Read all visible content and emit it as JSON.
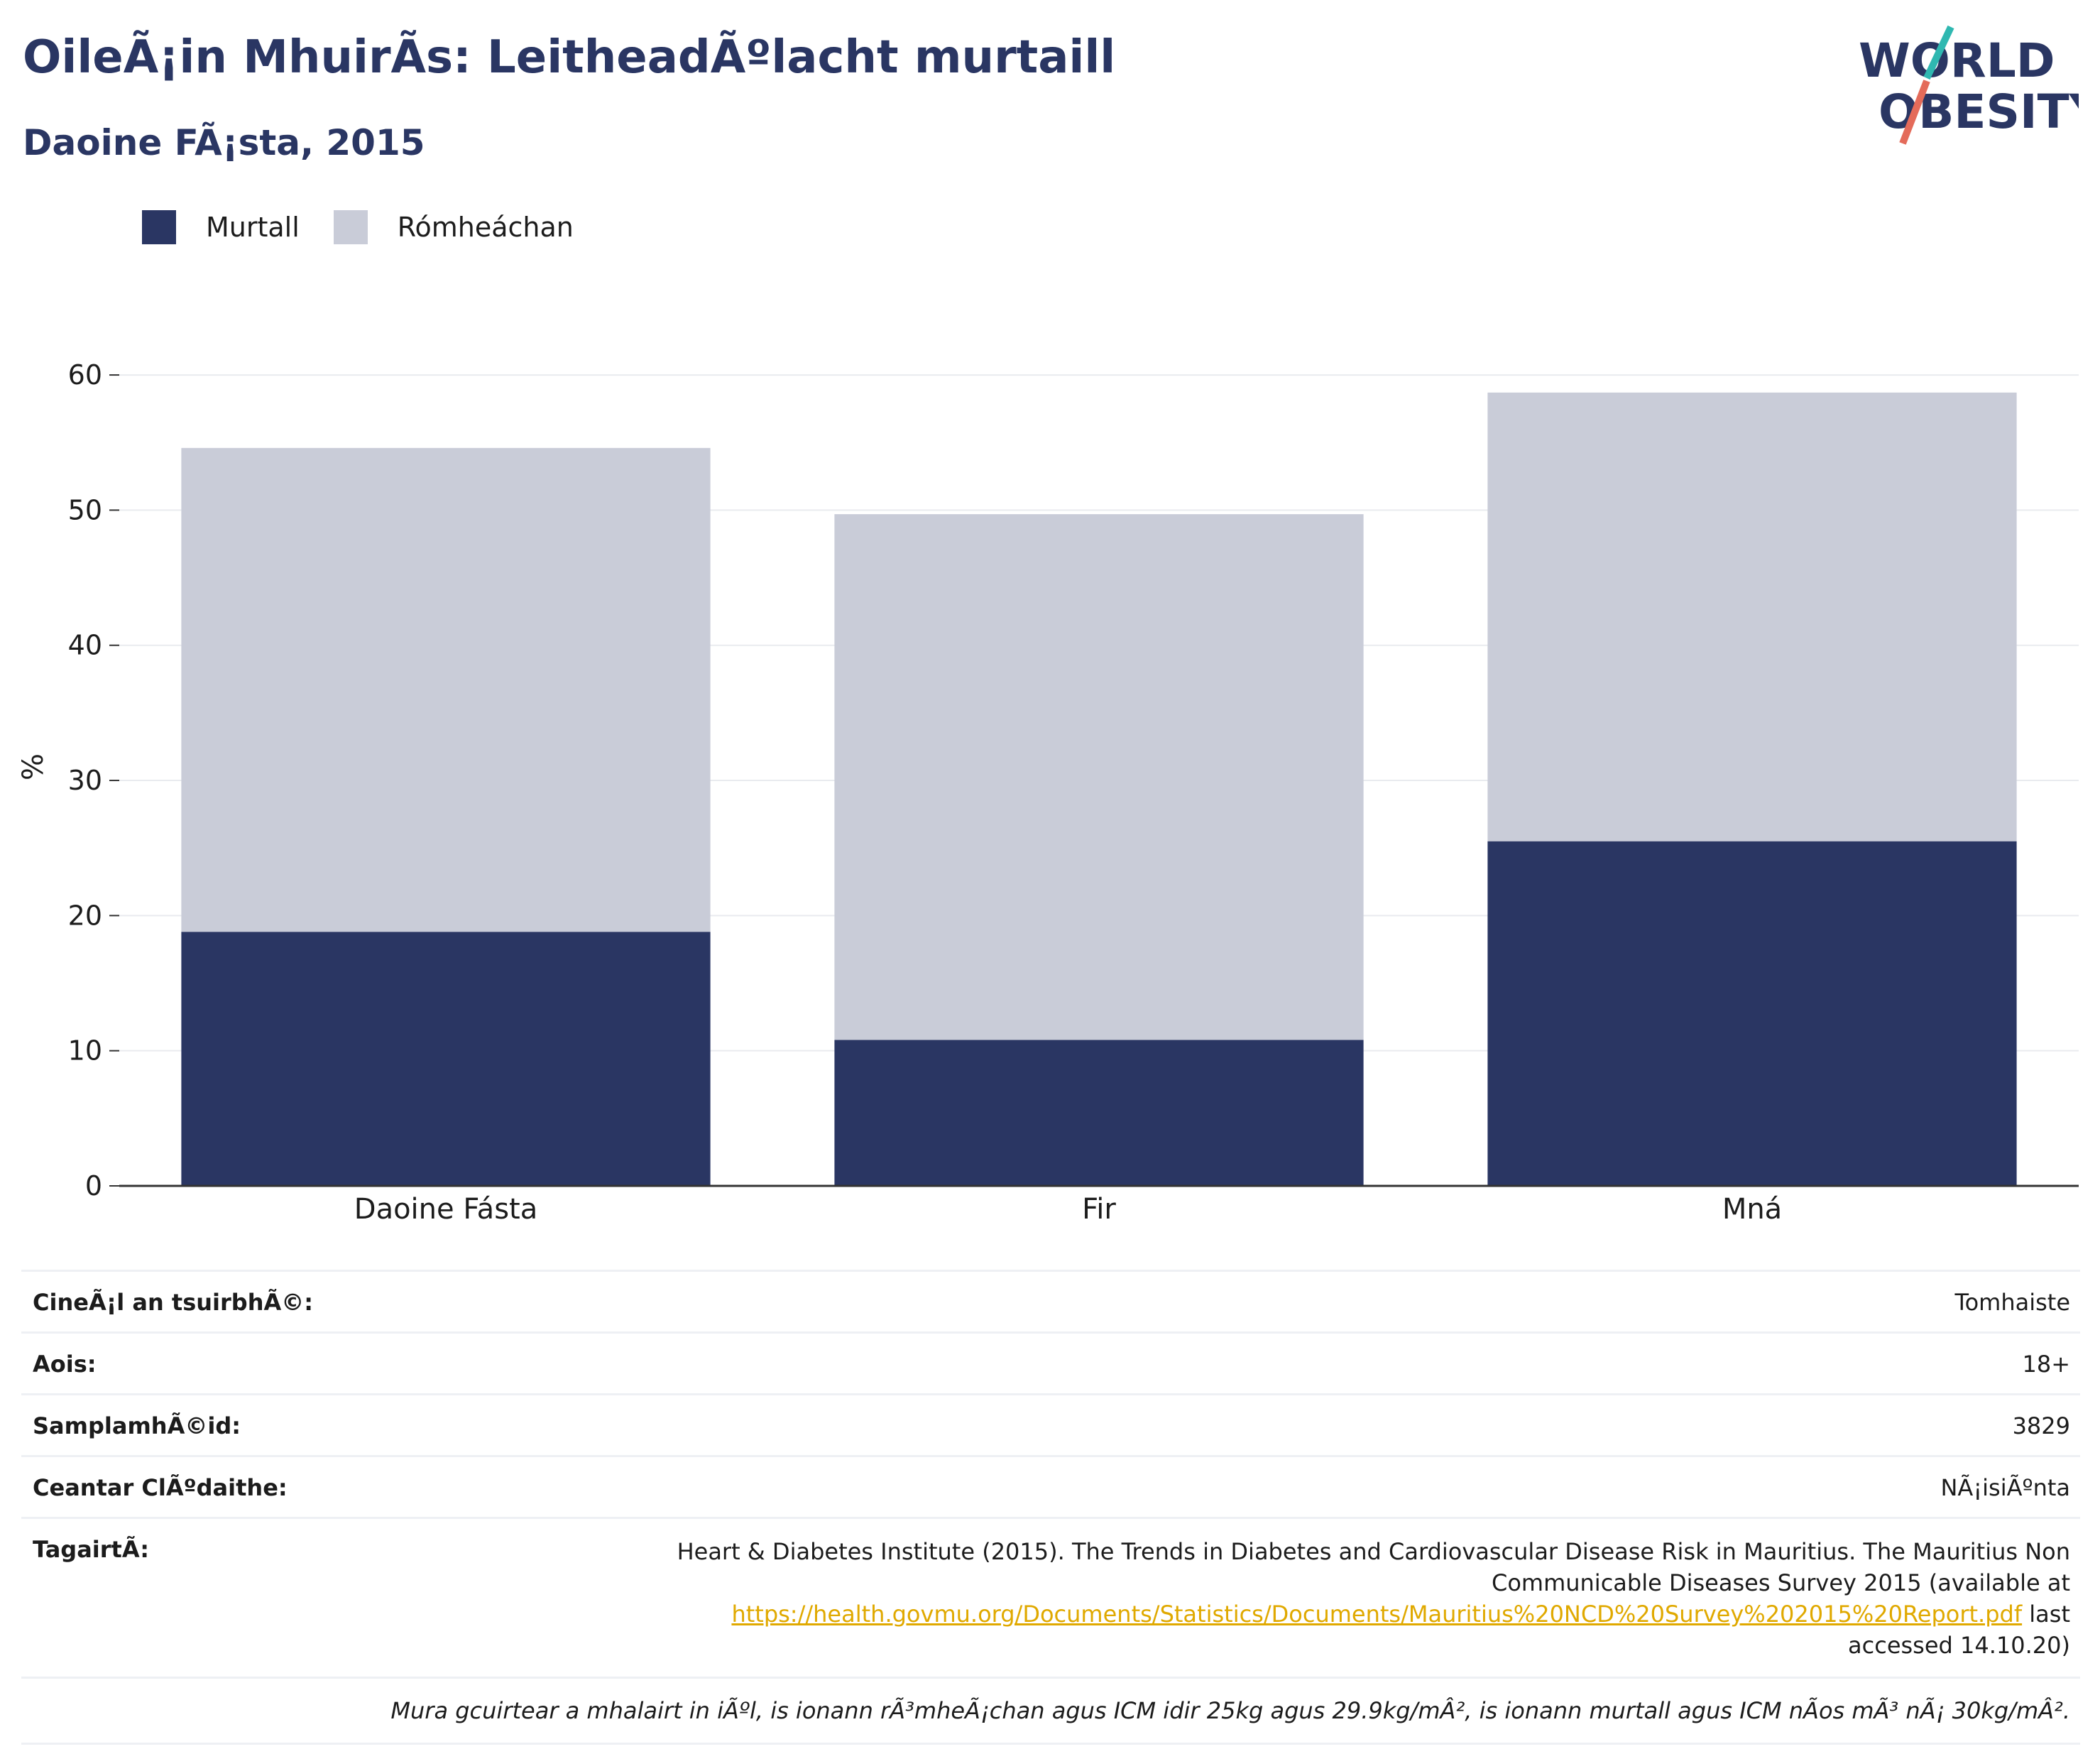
{
  "header": {
    "title": "OileÃ¡in MhuirÃs: LeitheadÃºlacht murtaill",
    "subtitle": "Daoine FÃ¡sta, 2015"
  },
  "logo": {
    "line1": "WORLD",
    "line2": "OBESITY"
  },
  "colors": {
    "obese": "#2a3663",
    "overweight": "#c9ccd8",
    "accent": "#2a3663",
    "link": "#e0a900"
  },
  "legend": {
    "items": [
      "Murtall",
      "Rómheáchan"
    ]
  },
  "chart_data": {
    "type": "bar",
    "stacked": true,
    "categories": [
      "Daoine Fásta",
      "Fir",
      "Mná"
    ],
    "series": [
      {
        "name": "Murtall",
        "values": [
          18.8,
          10.8,
          25.5
        ]
      },
      {
        "name": "Rómheáchan",
        "values": [
          35.8,
          38.9,
          33.2
        ]
      }
    ],
    "ylabel": "%",
    "ylim": [
      0,
      62
    ],
    "yticks": [
      0,
      10,
      20,
      30,
      40,
      50,
      60
    ],
    "grid": true,
    "legend_position": "top-left"
  },
  "info": {
    "rows": [
      {
        "label": "CineÃ¡l an tsuirbhÃ©:",
        "value": "Tomhaiste"
      },
      {
        "label": "Aois:",
        "value": "18+"
      },
      {
        "label": "SamplamhÃ©id:",
        "value": "3829"
      },
      {
        "label": "Ceantar ClÃºdaithe:",
        "value": "NÃ¡isiÃºnta"
      }
    ],
    "reference": {
      "label": "TagairtÃ:",
      "text_before": "Heart & Diabetes Institute (2015). The Trends in Diabetes and Cardiovascular Disease Risk in Mauritius. The Mauritius Non Communicable Diseases Survey 2015 (available at",
      "link": "https://health.govmu.org/Documents/Statistics/Documents/Mauritius%20NCD%20Survey%202015%20Report.pdf",
      "text_after": "last accessed 14.10.20)"
    },
    "note": "Mura gcuirtear a mhalairt in iÃºl, is ionann rÃ³mheÃ¡chan agus ICM idir 25kg agus 29.9kg/mÂ², is ionann murtall agus ICM nÃos mÃ³ nÃ¡ 30kg/mÂ²."
  }
}
